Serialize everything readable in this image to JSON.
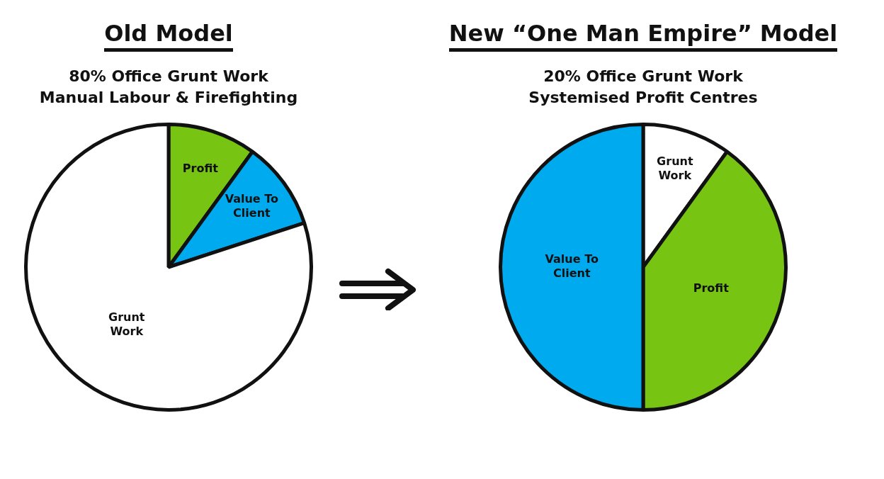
{
  "chart_data": [
    {
      "type": "pie",
      "title": "Old Model",
      "subtitle": "80% Office Grunt Work\nManual Labour & Firefighting",
      "categories": [
        "Profit",
        "Value To Client",
        "Grunt Work"
      ],
      "values": [
        10,
        10,
        80
      ],
      "colors": [
        "#77c412",
        "#00aaee",
        "#ffffff"
      ]
    },
    {
      "type": "pie",
      "title": "New “One Man Empire” Model",
      "subtitle": "20% Office Grunt Work\nSystemised Profit Centres",
      "categories": [
        "Grunt Work",
        "Profit",
        "Value To Client"
      ],
      "values": [
        10,
        40,
        50
      ],
      "colors": [
        "#ffffff",
        "#77c412",
        "#00aaee"
      ]
    }
  ]
}
